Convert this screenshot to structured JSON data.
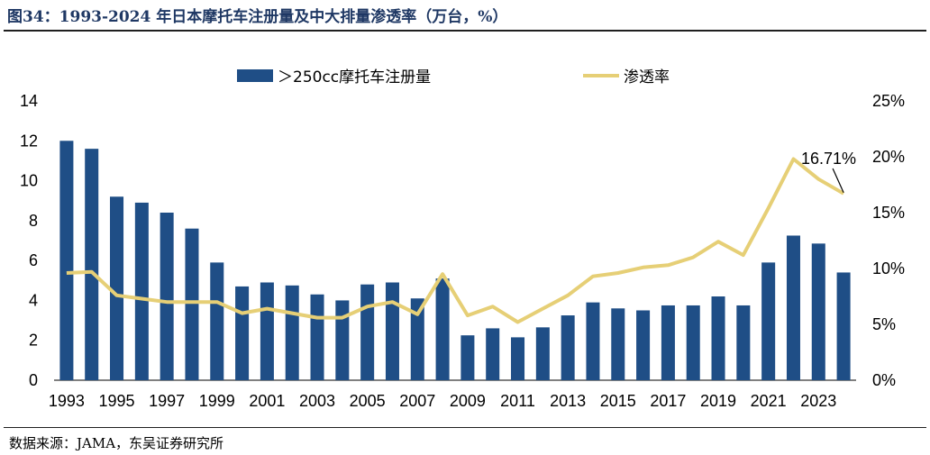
{
  "header": {
    "title": "图34：1993-2024 年日本摩托车注册量及中大排量渗透率（万台，%）"
  },
  "footer": {
    "source": "数据来源：JAMA，东吴证券研究所"
  },
  "colors": {
    "bar": "#1f4e86",
    "line": "#e6cf76"
  },
  "chart_data": {
    "type": "bar",
    "x": [
      1993,
      1994,
      1995,
      1996,
      1997,
      1998,
      1999,
      2000,
      2001,
      2002,
      2003,
      2004,
      2005,
      2006,
      2007,
      2008,
      2009,
      2010,
      2011,
      2012,
      2013,
      2014,
      2015,
      2016,
      2017,
      2018,
      2019,
      2020,
      2021,
      2022,
      2023,
      2024
    ],
    "x_tick_labels": [
      "1993",
      "1995",
      "1997",
      "1999",
      "2001",
      "2003",
      "2005",
      "2007",
      "2009",
      "2011",
      "2013",
      "2015",
      "2017",
      "2019",
      "2021",
      "2023"
    ],
    "series": [
      {
        "name": "＞250cc摩托车注册量",
        "type": "bar",
        "axis": "left",
        "values": [
          12.0,
          11.6,
          9.2,
          8.9,
          8.4,
          7.6,
          5.9,
          4.7,
          4.9,
          4.75,
          4.3,
          4.0,
          4.8,
          4.9,
          4.1,
          5.1,
          2.25,
          2.6,
          2.15,
          2.65,
          3.25,
          3.9,
          3.6,
          3.5,
          3.75,
          3.75,
          4.2,
          3.75,
          5.9,
          7.25,
          6.85,
          5.4
        ]
      },
      {
        "name": "渗透率",
        "type": "line",
        "axis": "right",
        "values": [
          9.6,
          9.7,
          7.6,
          7.3,
          7.0,
          7.0,
          7.0,
          6.0,
          6.4,
          6.0,
          5.6,
          5.6,
          6.6,
          7.0,
          5.9,
          9.5,
          5.8,
          6.6,
          5.2,
          6.4,
          7.6,
          9.3,
          9.6,
          10.1,
          10.3,
          11.0,
          12.4,
          11.2,
          15.4,
          19.8,
          18.0,
          16.71
        ]
      }
    ],
    "y_left": {
      "min": 0,
      "max": 14,
      "ticks": [
        "0",
        "2",
        "4",
        "6",
        "8",
        "10",
        "12",
        "14"
      ]
    },
    "y_right": {
      "min": 0,
      "max": 25,
      "ticks": [
        "0%",
        "5%",
        "10%",
        "15%",
        "20%",
        "25%"
      ]
    },
    "annotation": {
      "text": "16.71%",
      "year": 2024
    },
    "legend": {
      "placement": "top"
    }
  }
}
